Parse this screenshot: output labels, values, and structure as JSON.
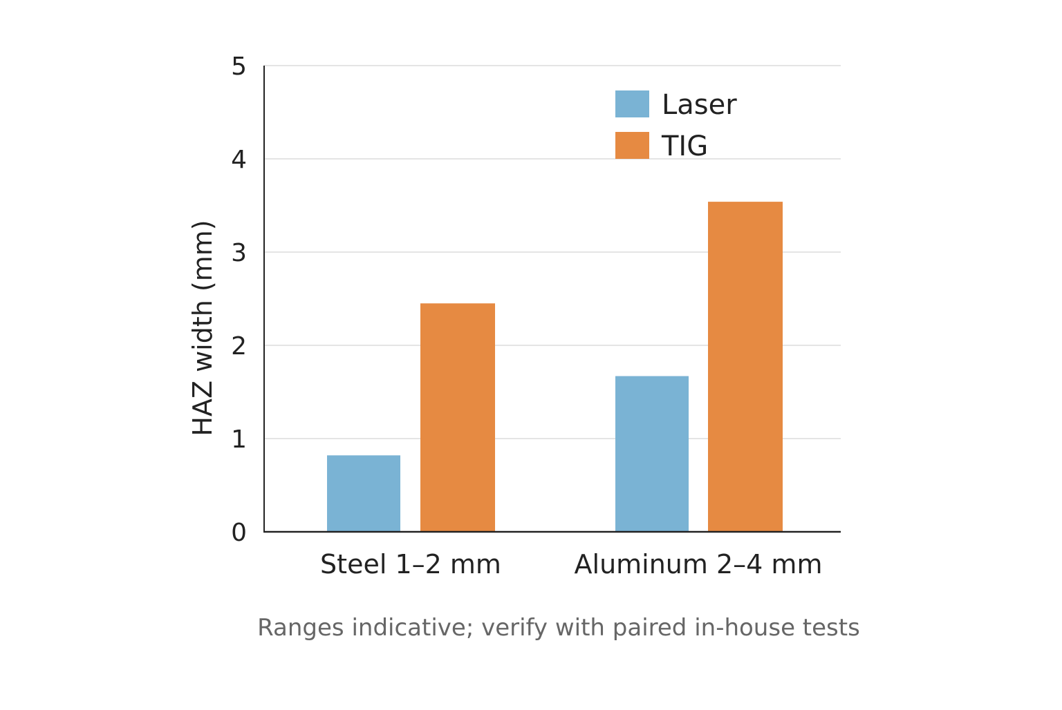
{
  "chart_data": {
    "type": "bar",
    "title": "",
    "xlabel": "",
    "ylabel": "HAZ width (mm)",
    "ylim": [
      0,
      5
    ],
    "yticks": [
      0,
      1,
      2,
      3,
      4,
      5
    ],
    "grid": true,
    "legend_position": "top-right",
    "categories": [
      "Steel 1–2 mm",
      "Aluminum 2–4 mm"
    ],
    "series": [
      {
        "name": "Laser",
        "color": "#7ab3d4",
        "values": [
          0.82,
          1.67
        ]
      },
      {
        "name": "TIG",
        "color": "#e68a42",
        "values": [
          2.45,
          3.54
        ]
      }
    ],
    "note": "Ranges indicative; verify with paired in-house tests"
  }
}
